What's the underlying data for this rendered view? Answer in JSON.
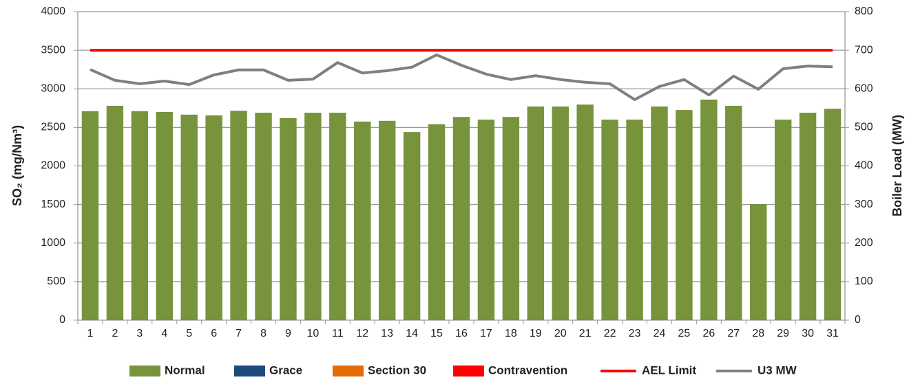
{
  "chart_data": {
    "type": "bar",
    "categories": [
      "1",
      "2",
      "3",
      "4",
      "5",
      "6",
      "7",
      "8",
      "9",
      "10",
      "11",
      "12",
      "13",
      "14",
      "15",
      "16",
      "17",
      "18",
      "19",
      "20",
      "21",
      "22",
      "23",
      "24",
      "25",
      "26",
      "27",
      "28",
      "29",
      "30",
      "31"
    ],
    "y_label": "SO₂ (mg/Nm³)",
    "y2_label": "Boiler Load (MW)",
    "ylim": [
      0,
      4000
    ],
    "yticks": [
      0,
      500,
      1000,
      1500,
      2000,
      2500,
      3000,
      3500,
      4000
    ],
    "y2lim": [
      0,
      800
    ],
    "y2ticks": [
      0,
      100,
      200,
      300,
      400,
      500,
      600,
      700,
      800
    ],
    "grid": true,
    "legend": "bottom",
    "series": [
      {
        "name": "Normal",
        "type": "bar",
        "color": "#77933c",
        "values": [
          2710,
          2780,
          2710,
          2700,
          2665,
          2655,
          2715,
          2690,
          2620,
          2690,
          2690,
          2575,
          2585,
          2440,
          2540,
          2635,
          2600,
          2635,
          2770,
          2770,
          2795,
          2600,
          2600,
          2770,
          2725,
          2860,
          2780,
          1505,
          2600,
          2690,
          2740
        ]
      },
      {
        "name": "Grace",
        "type": "bar",
        "color": "#1f497d",
        "values": [
          null,
          null,
          null,
          null,
          null,
          null,
          null,
          null,
          null,
          null,
          null,
          null,
          null,
          null,
          null,
          null,
          null,
          null,
          null,
          null,
          null,
          null,
          null,
          null,
          null,
          null,
          null,
          null,
          null,
          null,
          null
        ]
      },
      {
        "name": "Section 30",
        "type": "bar",
        "color": "#e36c09",
        "values": [
          null,
          null,
          null,
          null,
          null,
          null,
          null,
          null,
          null,
          null,
          null,
          null,
          null,
          null,
          null,
          null,
          null,
          null,
          null,
          null,
          null,
          null,
          null,
          null,
          null,
          null,
          null,
          null,
          null,
          null,
          null
        ]
      },
      {
        "name": "Contravention",
        "type": "bar",
        "color": "#ff0000",
        "values": [
          null,
          null,
          null,
          null,
          null,
          null,
          null,
          null,
          null,
          null,
          null,
          null,
          null,
          null,
          null,
          null,
          null,
          null,
          null,
          null,
          null,
          null,
          null,
          null,
          null,
          null,
          null,
          null,
          null,
          null,
          null
        ]
      },
      {
        "name": "AEL Limit",
        "type": "line",
        "color": "#ff0000",
        "values": [
          3500,
          3500,
          3500,
          3500,
          3500,
          3500,
          3500,
          3500,
          3500,
          3500,
          3500,
          3500,
          3500,
          3500,
          3500,
          3500,
          3500,
          3500,
          3500,
          3500,
          3500,
          3500,
          3500,
          3500,
          3500,
          3500,
          3500,
          3500,
          3500,
          3500,
          3500
        ]
      },
      {
        "name": "U3 MW",
        "type": "line",
        "axis": "y2",
        "color": "#7f7f7f",
        "values": [
          650,
          622,
          613,
          620,
          611,
          636,
          649,
          649,
          622,
          625,
          668,
          641,
          647,
          656,
          688,
          661,
          638,
          624,
          634,
          624,
          617,
          613,
          572,
          606,
          624,
          584,
          633,
          599,
          652,
          659,
          657
        ]
      }
    ]
  }
}
